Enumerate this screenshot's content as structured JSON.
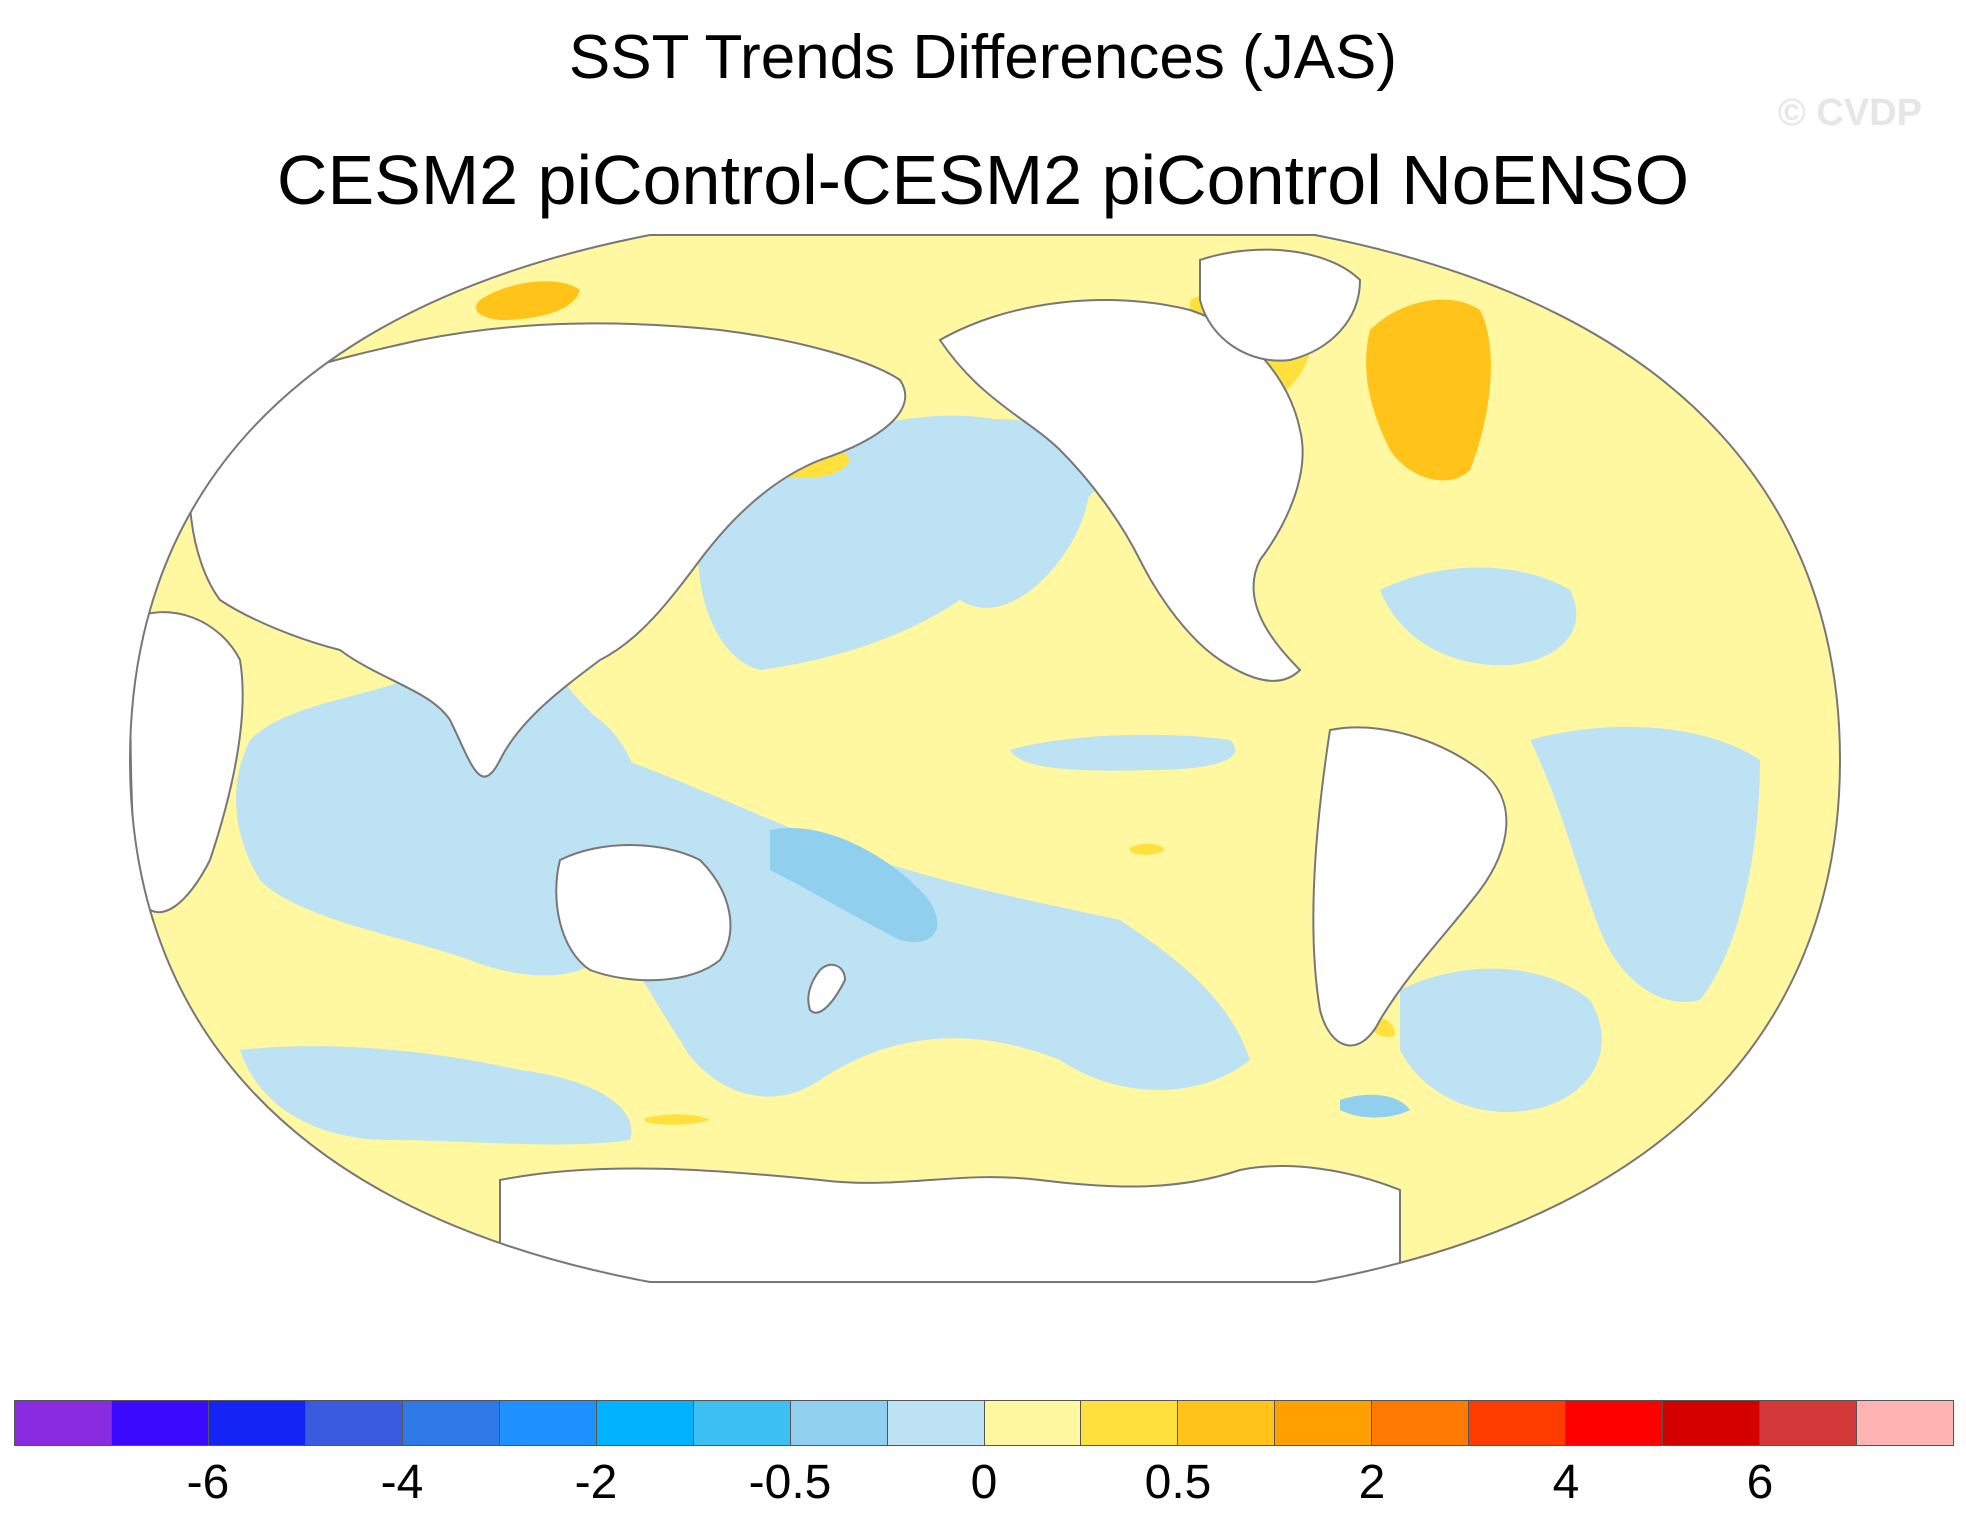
{
  "title": "SST Trends Differences (JAS)",
  "subtitle": "CESM2 piControl-CESM2 piControl NoENSO",
  "watermark": "© CVDP",
  "colorbar": {
    "colors": [
      "#8a2be2",
      "#3a0aff",
      "#1424f4",
      "#3a5ae0",
      "#2e78e8",
      "#1e90ff",
      "#00b2ff",
      "#3cc0f4",
      "#90d0ee",
      "#bde2f4",
      "#fff8a0",
      "#ffe03c",
      "#ffc31a",
      "#ffa000",
      "#ff7a00",
      "#ff3c00",
      "#ff0000",
      "#d40000",
      "#d43838",
      "#ffb4b4"
    ],
    "tick_labels": [
      {
        "label": "-6",
        "boundary": 2
      },
      {
        "label": "-4",
        "boundary": 4
      },
      {
        "label": "-2",
        "boundary": 6
      },
      {
        "label": "-0.5",
        "boundary": 8
      },
      {
        "label": "0",
        "boundary": 10
      },
      {
        "label": "0.5",
        "boundary": 12
      },
      {
        "label": "2",
        "boundary": 14
      },
      {
        "label": "4",
        "boundary": 16
      },
      {
        "label": "6",
        "boundary": 18
      }
    ]
  },
  "map": {
    "projection": "Robinson (Pacific-centered)",
    "fill_colors": {
      "land": "#ffffff",
      "near_zero_negative": "#bde2f4",
      "negative_moderate": "#90d0ee",
      "positive_small": "#fff8a0",
      "positive_moderate": "#ffe03c",
      "positive_large": "#ffc31a",
      "coastline": "#777777"
    }
  }
}
